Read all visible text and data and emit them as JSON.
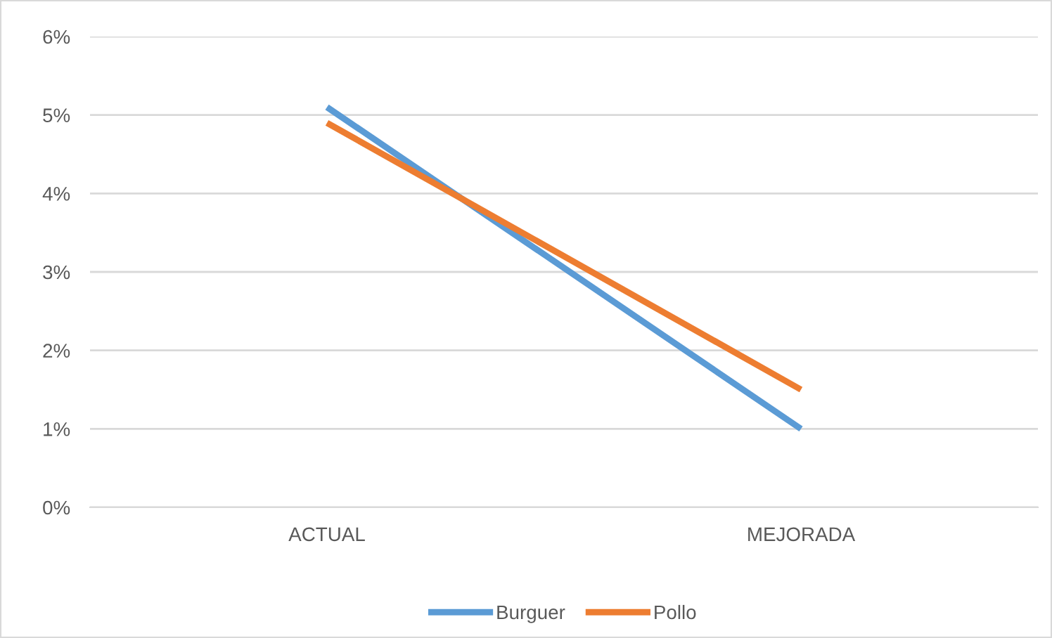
{
  "chart_data": {
    "type": "line",
    "categories": [
      "ACTUAL",
      "MEJORADA"
    ],
    "series": [
      {
        "name": "Burguer",
        "color": "#5b9bd5",
        "values": [
          5.1,
          1.0
        ]
      },
      {
        "name": "Pollo",
        "color": "#ed7d31",
        "values": [
          4.9,
          1.5
        ]
      }
    ],
    "ylim": [
      0,
      6
    ],
    "yticks": [
      {
        "value": 0,
        "label": "0%"
      },
      {
        "value": 1,
        "label": "1%"
      },
      {
        "value": 2,
        "label": "2%"
      },
      {
        "value": 3,
        "label": "3%"
      },
      {
        "value": 4,
        "label": "4%"
      },
      {
        "value": 5,
        "label": "5%"
      },
      {
        "value": 6,
        "label": "6%"
      }
    ],
    "grid": "y",
    "legend": "bottom",
    "marker": "none",
    "line_style": "solid"
  }
}
